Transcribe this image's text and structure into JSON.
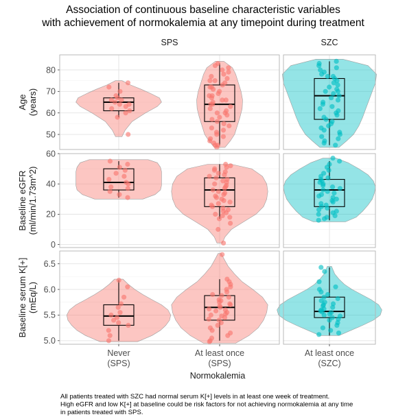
{
  "chart_data": {
    "type": "violin",
    "title_lines": [
      "Association of continuous baseline characteristic variables",
      "with achievement of normokalemia at any timepoint during treatment"
    ],
    "facet_columns": [
      "SPS",
      "SZC"
    ],
    "xlabel": "Normokalemia",
    "groups": [
      {
        "key": "never_sps",
        "facet": "SPS",
        "label_lines": [
          "Never",
          "(SPS)"
        ],
        "color": "#F8766D"
      },
      {
        "key": "atleast_sps",
        "facet": "SPS",
        "label_lines": [
          "At least once",
          "(SPS)"
        ],
        "color": "#F8766D"
      },
      {
        "key": "atleast_szc",
        "facet": "SZC",
        "label_lines": [
          "At least once",
          "(SZC)"
        ],
        "color": "#00BFC4"
      }
    ],
    "panels": [
      {
        "variable": "age",
        "ylabel_lines": [
          "Age",
          "(years)"
        ],
        "ylim": [
          43,
          87
        ],
        "yticks": [
          50,
          60,
          70,
          80
        ],
        "ytick_labels": [
          "50",
          "60",
          "70",
          "80"
        ],
        "series": [
          {
            "group": "never_sps",
            "box": {
              "min": 58,
              "q1": 61,
              "median": 65,
              "q3": 67,
              "max": 74
            },
            "violin": {
              "y": [
                49,
                52,
                56,
                60,
                63,
                65,
                67,
                69,
                71,
                73,
                75
              ],
              "w": [
                0.06,
                0.12,
                0.25,
                0.5,
                0.72,
                0.8,
                0.76,
                0.6,
                0.42,
                0.22,
                0.06
              ]
            },
            "points": [
              74,
              72,
              70,
              68,
              67,
              66,
              66,
              65,
              64,
              64,
              63,
              62,
              61,
              60,
              58,
              50
            ]
          },
          {
            "group": "atleast_sps",
            "box": {
              "min": 45,
              "q1": 56,
              "median": 64,
              "q3": 73,
              "max": 83
            },
            "violin": {
              "y": [
                44,
                47,
                50,
                54,
                58,
                62,
                66,
                70,
                74,
                78,
                81,
                84
              ],
              "w": [
                0.1,
                0.2,
                0.28,
                0.33,
                0.38,
                0.42,
                0.43,
                0.4,
                0.35,
                0.3,
                0.24,
                0.08
              ]
            },
            "points": [
              83,
              82,
              81,
              80,
              79,
              78,
              77,
              76,
              75,
              75,
              74,
              73,
              72,
              72,
              71,
              70,
              69,
              68,
              68,
              67,
              66,
              66,
              65,
              64,
              64,
              63,
              62,
              61,
              60,
              60,
              59,
              58,
              57,
              56,
              55,
              54,
              53,
              52,
              51,
              50,
              49,
              48,
              47,
              46,
              45,
              45,
              44
            ]
          },
          {
            "group": "atleast_szc",
            "box": {
              "min": 45,
              "q1": 57,
              "median": 68,
              "q3": 76,
              "max": 84
            },
            "violin": {
              "y": [
                44,
                47,
                50,
                54,
                58,
                62,
                66,
                70,
                74,
                78,
                82,
                85
              ],
              "w": [
                0.18,
                0.32,
                0.45,
                0.55,
                0.62,
                0.68,
                0.74,
                0.8,
                0.86,
                0.88,
                0.72,
                0.25
              ]
            },
            "points": [
              84,
              83,
              82,
              81,
              80,
              79,
              78,
              77,
              77,
              76,
              75,
              74,
              73,
              72,
              71,
              70,
              70,
              69,
              68,
              67,
              66,
              65,
              64,
              63,
              62,
              61,
              60,
              59,
              58,
              57,
              56,
              55,
              54,
              53,
              52,
              51,
              50,
              49,
              48,
              47,
              46,
              45
            ]
          }
        ]
      },
      {
        "variable": "egfr",
        "ylabel_lines": [
          "Baseline eGFR",
          "(ml/min/1.73m^2)"
        ],
        "ylim": [
          -2,
          60
        ],
        "yticks": [
          0,
          20,
          40,
          60
        ],
        "ytick_labels": [
          "0",
          "20",
          "40",
          "60"
        ],
        "series": [
          {
            "group": "never_sps",
            "box": {
              "min": 31,
              "q1": 36,
              "median": 41,
              "q3": 50,
              "max": 55
            },
            "violin": {
              "y": [
                30,
                33,
                36,
                39,
                42,
                45,
                48,
                51,
                54,
                56
              ],
              "w": [
                0.45,
                0.68,
                0.78,
                0.8,
                0.8,
                0.8,
                0.8,
                0.78,
                0.72,
                0.55
              ]
            },
            "points": [
              55,
              53,
              51,
              49,
              47,
              45,
              43,
              41,
              40,
              38,
              37,
              35,
              33,
              31
            ]
          },
          {
            "group": "atleast_sps",
            "box": {
              "min": 17,
              "q1": 25,
              "median": 36,
              "q3": 44,
              "max": 53
            },
            "violin": {
              "y": [
                1,
                5,
                10,
                15,
                20,
                25,
                30,
                35,
                40,
                45,
                50,
                53
              ],
              "w": [
                0.05,
                0.1,
                0.22,
                0.45,
                0.68,
                0.82,
                0.88,
                0.9,
                0.88,
                0.8,
                0.6,
                0.22
              ]
            },
            "points": [
              53,
              52,
              51,
              50,
              49,
              48,
              47,
              46,
              45,
              44,
              43,
              42,
              41,
              40,
              39,
              38,
              37,
              36,
              35,
              34,
              33,
              32,
              31,
              30,
              29,
              28,
              27,
              26,
              25,
              24,
              23,
              22,
              21,
              20,
              19,
              18,
              17,
              14,
              10,
              1
            ]
          },
          {
            "group": "atleast_szc",
            "box": {
              "min": 16,
              "q1": 25,
              "median": 36,
              "q3": 43,
              "max": 55
            },
            "violin": {
              "y": [
                15,
                18,
                22,
                26,
                30,
                34,
                38,
                42,
                46,
                50,
                54,
                57
              ],
              "w": [
                0.3,
                0.5,
                0.62,
                0.72,
                0.8,
                0.84,
                0.86,
                0.82,
                0.72,
                0.55,
                0.35,
                0.12
              ]
            },
            "points": [
              57,
              55,
              53,
              51,
              49,
              47,
              45,
              44,
              43,
              42,
              41,
              40,
              39,
              38,
              37,
              36,
              35,
              34,
              33,
              32,
              31,
              30,
              29,
              28,
              27,
              26,
              25,
              24,
              23,
              22,
              21,
              20,
              19,
              18,
              17,
              16
            ]
          }
        ]
      },
      {
        "variable": "k",
        "ylabel_lines": [
          "Baseline serum K[+]",
          "(mEq/L)"
        ],
        "ylim": [
          4.93,
          6.75
        ],
        "yticks": [
          5.0,
          5.5,
          6.0,
          6.5
        ],
        "ytick_labels": [
          "5.0",
          "5.5",
          "6.0",
          "6.5"
        ],
        "series": [
          {
            "group": "never_sps",
            "box": {
              "min": 5.0,
              "q1": 5.3,
              "median": 5.48,
              "q3": 5.7,
              "max": 6.18
            },
            "violin": {
              "y": [
                4.98,
                5.1,
                5.2,
                5.3,
                5.4,
                5.5,
                5.6,
                5.7,
                5.8,
                5.9,
                6.0,
                6.1,
                6.2
              ],
              "w": [
                0.35,
                0.62,
                0.78,
                0.88,
                0.95,
                0.97,
                0.92,
                0.8,
                0.62,
                0.45,
                0.3,
                0.18,
                0.08
              ]
            },
            "points": [
              6.18,
              6.05,
              5.85,
              5.72,
              5.65,
              5.55,
              5.5,
              5.45,
              5.4,
              5.35,
              5.3,
              5.2,
              5.1,
              5.0
            ]
          },
          {
            "group": "atleast_sps",
            "box": {
              "min": 5.0,
              "q1": 5.4,
              "median": 5.65,
              "q3": 5.88,
              "max": 6.2
            },
            "violin": {
              "y": [
                4.95,
                5.1,
                5.25,
                5.4,
                5.55,
                5.7,
                5.85,
                6.0,
                6.15,
                6.3,
                6.45,
                6.6,
                6.7
              ],
              "w": [
                0.3,
                0.55,
                0.72,
                0.82,
                0.88,
                0.9,
                0.8,
                0.62,
                0.42,
                0.28,
                0.16,
                0.08,
                0.03
              ]
            },
            "points": [
              6.68,
              6.2,
              6.15,
              6.1,
              6.05,
              6.0,
              5.95,
              5.9,
              5.88,
              5.85,
              5.8,
              5.78,
              5.75,
              5.72,
              5.7,
              5.68,
              5.65,
              5.62,
              5.6,
              5.58,
              5.55,
              5.52,
              5.5,
              5.48,
              5.45,
              5.42,
              5.4,
              5.35,
              5.3,
              5.25,
              5.2,
              5.15,
              5.1,
              5.05,
              5.0,
              4.98
            ]
          },
          {
            "group": "atleast_szc",
            "box": {
              "min": 5.1,
              "q1": 5.45,
              "median": 5.57,
              "q3": 5.85,
              "max": 6.43
            },
            "violin": {
              "y": [
                5.1,
                5.2,
                5.3,
                5.4,
                5.5,
                5.6,
                5.7,
                5.8,
                5.9,
                6.0,
                6.1,
                6.2,
                6.3,
                6.45
              ],
              "w": [
                0.18,
                0.4,
                0.62,
                0.82,
                0.95,
                0.98,
                0.92,
                0.78,
                0.6,
                0.42,
                0.28,
                0.18,
                0.1,
                0.04
              ]
            },
            "points": [
              6.43,
              6.35,
              6.15,
              6.05,
              6.0,
              5.95,
              5.9,
              5.85,
              5.82,
              5.78,
              5.75,
              5.72,
              5.7,
              5.68,
              5.65,
              5.62,
              5.6,
              5.58,
              5.56,
              5.55,
              5.52,
              5.5,
              5.48,
              5.45,
              5.42,
              5.4,
              5.35,
              5.3,
              5.25,
              5.2,
              5.15,
              5.12
            ]
          }
        ]
      }
    ],
    "caption_lines": [
      "All patients treated with SZC had normal serum K[+] levels in at least one week of treatment.",
      "High eGFR and low K[+] at baseline could be risk factors for not achieving normokalemia at any time",
      "in patients treated with SPS."
    ]
  }
}
